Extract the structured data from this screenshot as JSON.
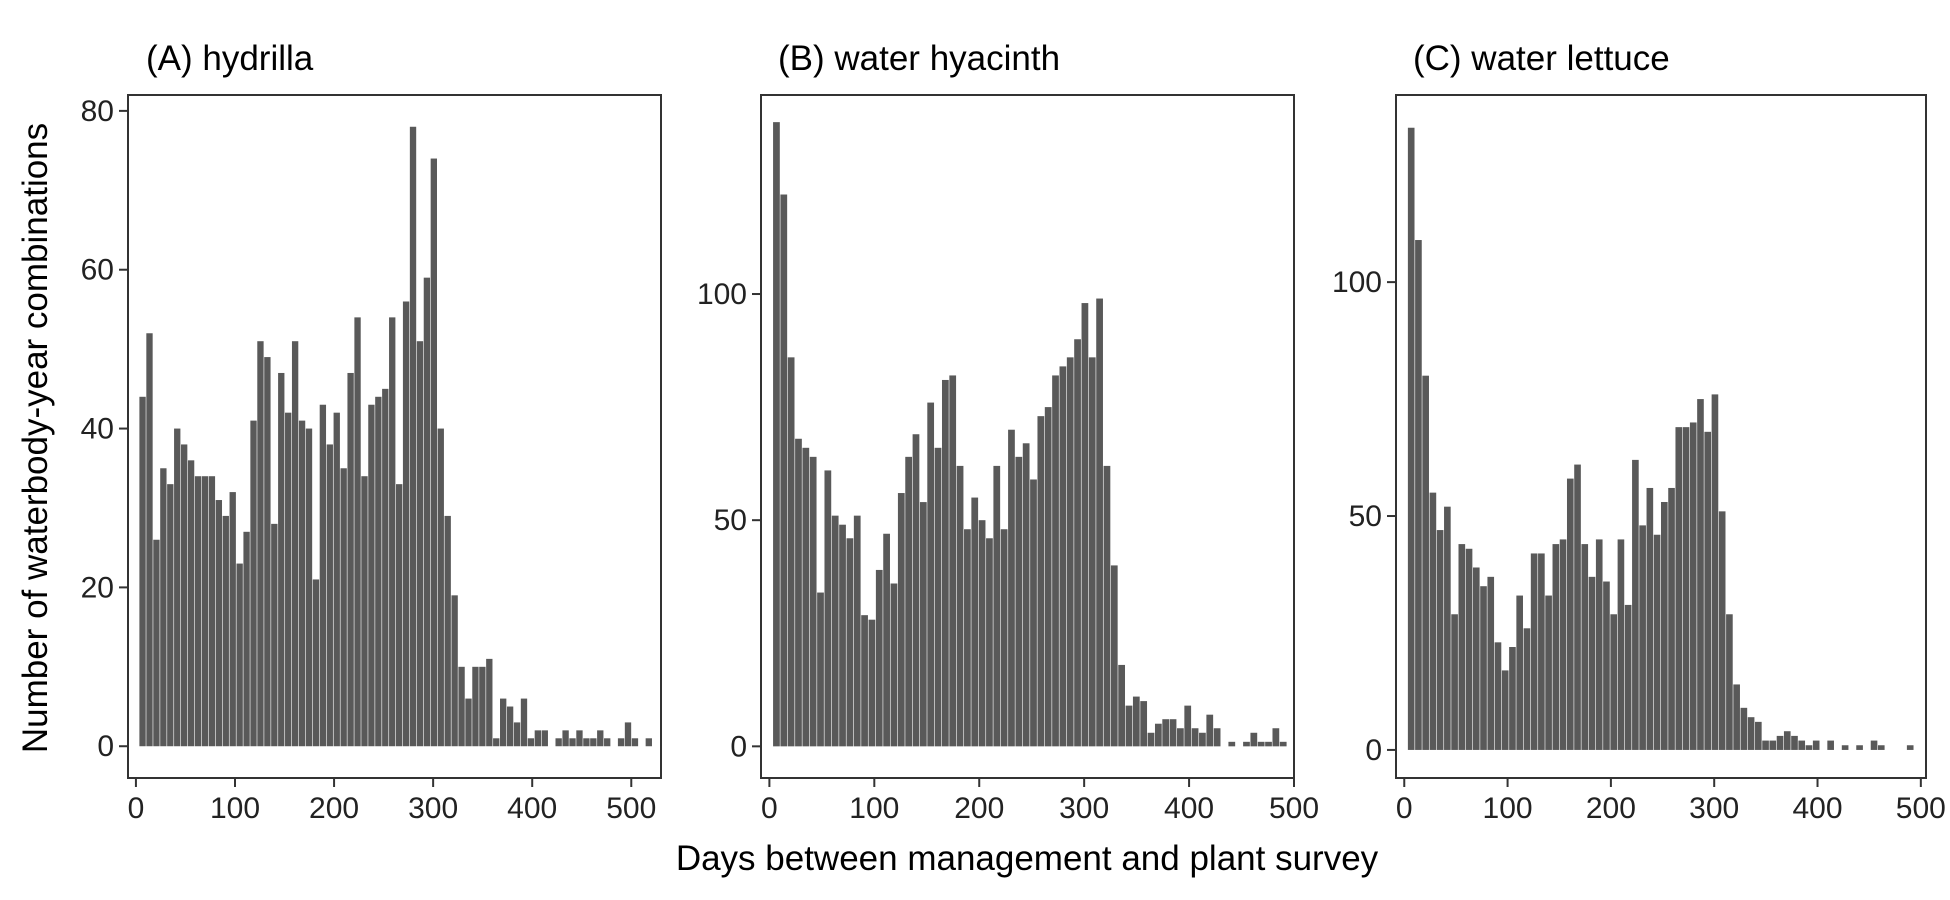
{
  "figure": {
    "ylabel": "Number of waterbody-year combinations",
    "xlabel": "Days between management and plant survey"
  },
  "chart_data": [
    {
      "type": "bar",
      "title": "(A) hydrilla",
      "xlim": [
        -8,
        530
      ],
      "ylim": [
        -4,
        82
      ],
      "xticks": [
        0,
        100,
        200,
        300,
        400,
        500
      ],
      "yticks": [
        0,
        20,
        40,
        60,
        80
      ],
      "bin_width": 7,
      "x": [
        7,
        14,
        21,
        28,
        35,
        42,
        49,
        56,
        63,
        70,
        77,
        84,
        91,
        98,
        105,
        112,
        119,
        126,
        133,
        140,
        147,
        154,
        161,
        168,
        175,
        182,
        189,
        196,
        203,
        210,
        217,
        224,
        231,
        238,
        245,
        252,
        259,
        266,
        273,
        280,
        287,
        294,
        301,
        308,
        315,
        322,
        329,
        336,
        343,
        350,
        357,
        364,
        371,
        378,
        385,
        392,
        399,
        406,
        413,
        420,
        427,
        434,
        441,
        448,
        455,
        462,
        469,
        476,
        483,
        490,
        497,
        504,
        511,
        518
      ],
      "values": [
        44,
        52,
        26,
        35,
        33,
        40,
        38,
        36,
        34,
        34,
        34,
        31,
        29,
        32,
        23,
        27,
        41,
        51,
        49,
        28,
        47,
        42,
        51,
        41,
        40,
        21,
        43,
        38,
        42,
        35,
        47,
        54,
        34,
        43,
        44,
        45,
        54,
        33,
        56,
        78,
        51,
        59,
        74,
        40,
        29,
        19,
        10,
        6,
        10,
        10,
        11,
        1,
        6,
        5,
        3,
        6,
        1,
        2,
        2,
        0,
        1,
        2,
        1,
        2,
        1,
        1,
        2,
        1,
        0,
        1,
        3,
        1,
        0,
        1
      ]
    },
    {
      "type": "bar",
      "title": "(B) water hyacinth",
      "xlim": [
        -8,
        500
      ],
      "ylim": [
        -7,
        144
      ],
      "xticks": [
        0,
        100,
        200,
        300,
        400,
        500
      ],
      "yticks": [
        0,
        50,
        100
      ],
      "bin_width": 7,
      "x": [
        7,
        14,
        21,
        28,
        35,
        42,
        49,
        56,
        63,
        70,
        77,
        84,
        91,
        98,
        105,
        112,
        119,
        126,
        133,
        140,
        147,
        154,
        161,
        168,
        175,
        182,
        189,
        196,
        203,
        210,
        217,
        224,
        231,
        238,
        245,
        252,
        259,
        266,
        273,
        280,
        287,
        294,
        301,
        308,
        315,
        322,
        329,
        336,
        343,
        350,
        357,
        364,
        371,
        378,
        385,
        392,
        399,
        406,
        413,
        420,
        427,
        434,
        441,
        448,
        455,
        462,
        469,
        476,
        483,
        490
      ],
      "values": [
        138,
        122,
        86,
        68,
        66,
        64,
        34,
        61,
        51,
        49,
        46,
        51,
        29,
        28,
        39,
        47,
        36,
        56,
        64,
        69,
        54,
        76,
        66,
        81,
        82,
        62,
        48,
        55,
        50,
        46,
        62,
        48,
        70,
        64,
        67,
        59,
        73,
        75,
        82,
        84,
        86,
        90,
        98,
        86,
        99,
        62,
        40,
        18,
        9,
        11,
        10,
        3,
        5,
        6,
        6,
        4,
        9,
        4,
        3,
        7,
        4,
        0,
        1,
        0,
        1,
        3,
        1,
        1,
        4,
        1
      ]
    },
    {
      "type": "bar",
      "title": "(C) water lettuce",
      "xlim": [
        -8,
        505
      ],
      "ylim": [
        -6,
        140
      ],
      "xticks": [
        0,
        100,
        200,
        300,
        400,
        500
      ],
      "yticks": [
        0,
        50,
        100
      ],
      "bin_width": 7,
      "x": [
        7,
        14,
        21,
        28,
        35,
        42,
        49,
        56,
        63,
        70,
        77,
        84,
        91,
        98,
        105,
        112,
        119,
        126,
        133,
        140,
        147,
        154,
        161,
        168,
        175,
        182,
        189,
        196,
        203,
        210,
        217,
        224,
        231,
        238,
        245,
        252,
        259,
        266,
        273,
        280,
        287,
        294,
        301,
        308,
        315,
        322,
        329,
        336,
        343,
        350,
        357,
        364,
        371,
        378,
        385,
        392,
        399,
        406,
        413,
        420,
        427,
        434,
        441,
        448,
        455,
        462,
        469,
        476,
        483,
        490
      ],
      "values": [
        133,
        109,
        80,
        55,
        47,
        52,
        29,
        44,
        43,
        39,
        35,
        37,
        23,
        17,
        22,
        33,
        26,
        42,
        42,
        33,
        44,
        45,
        58,
        61,
        44,
        37,
        45,
        36,
        29,
        45,
        31,
        62,
        48,
        56,
        46,
        53,
        56,
        69,
        69,
        70,
        75,
        68,
        76,
        51,
        29,
        14,
        9,
        7,
        6,
        2,
        2,
        3,
        4,
        3,
        2,
        1,
        2,
        0,
        2,
        0,
        1,
        0,
        1,
        0,
        2,
        1,
        0,
        0,
        0,
        1
      ]
    }
  ]
}
